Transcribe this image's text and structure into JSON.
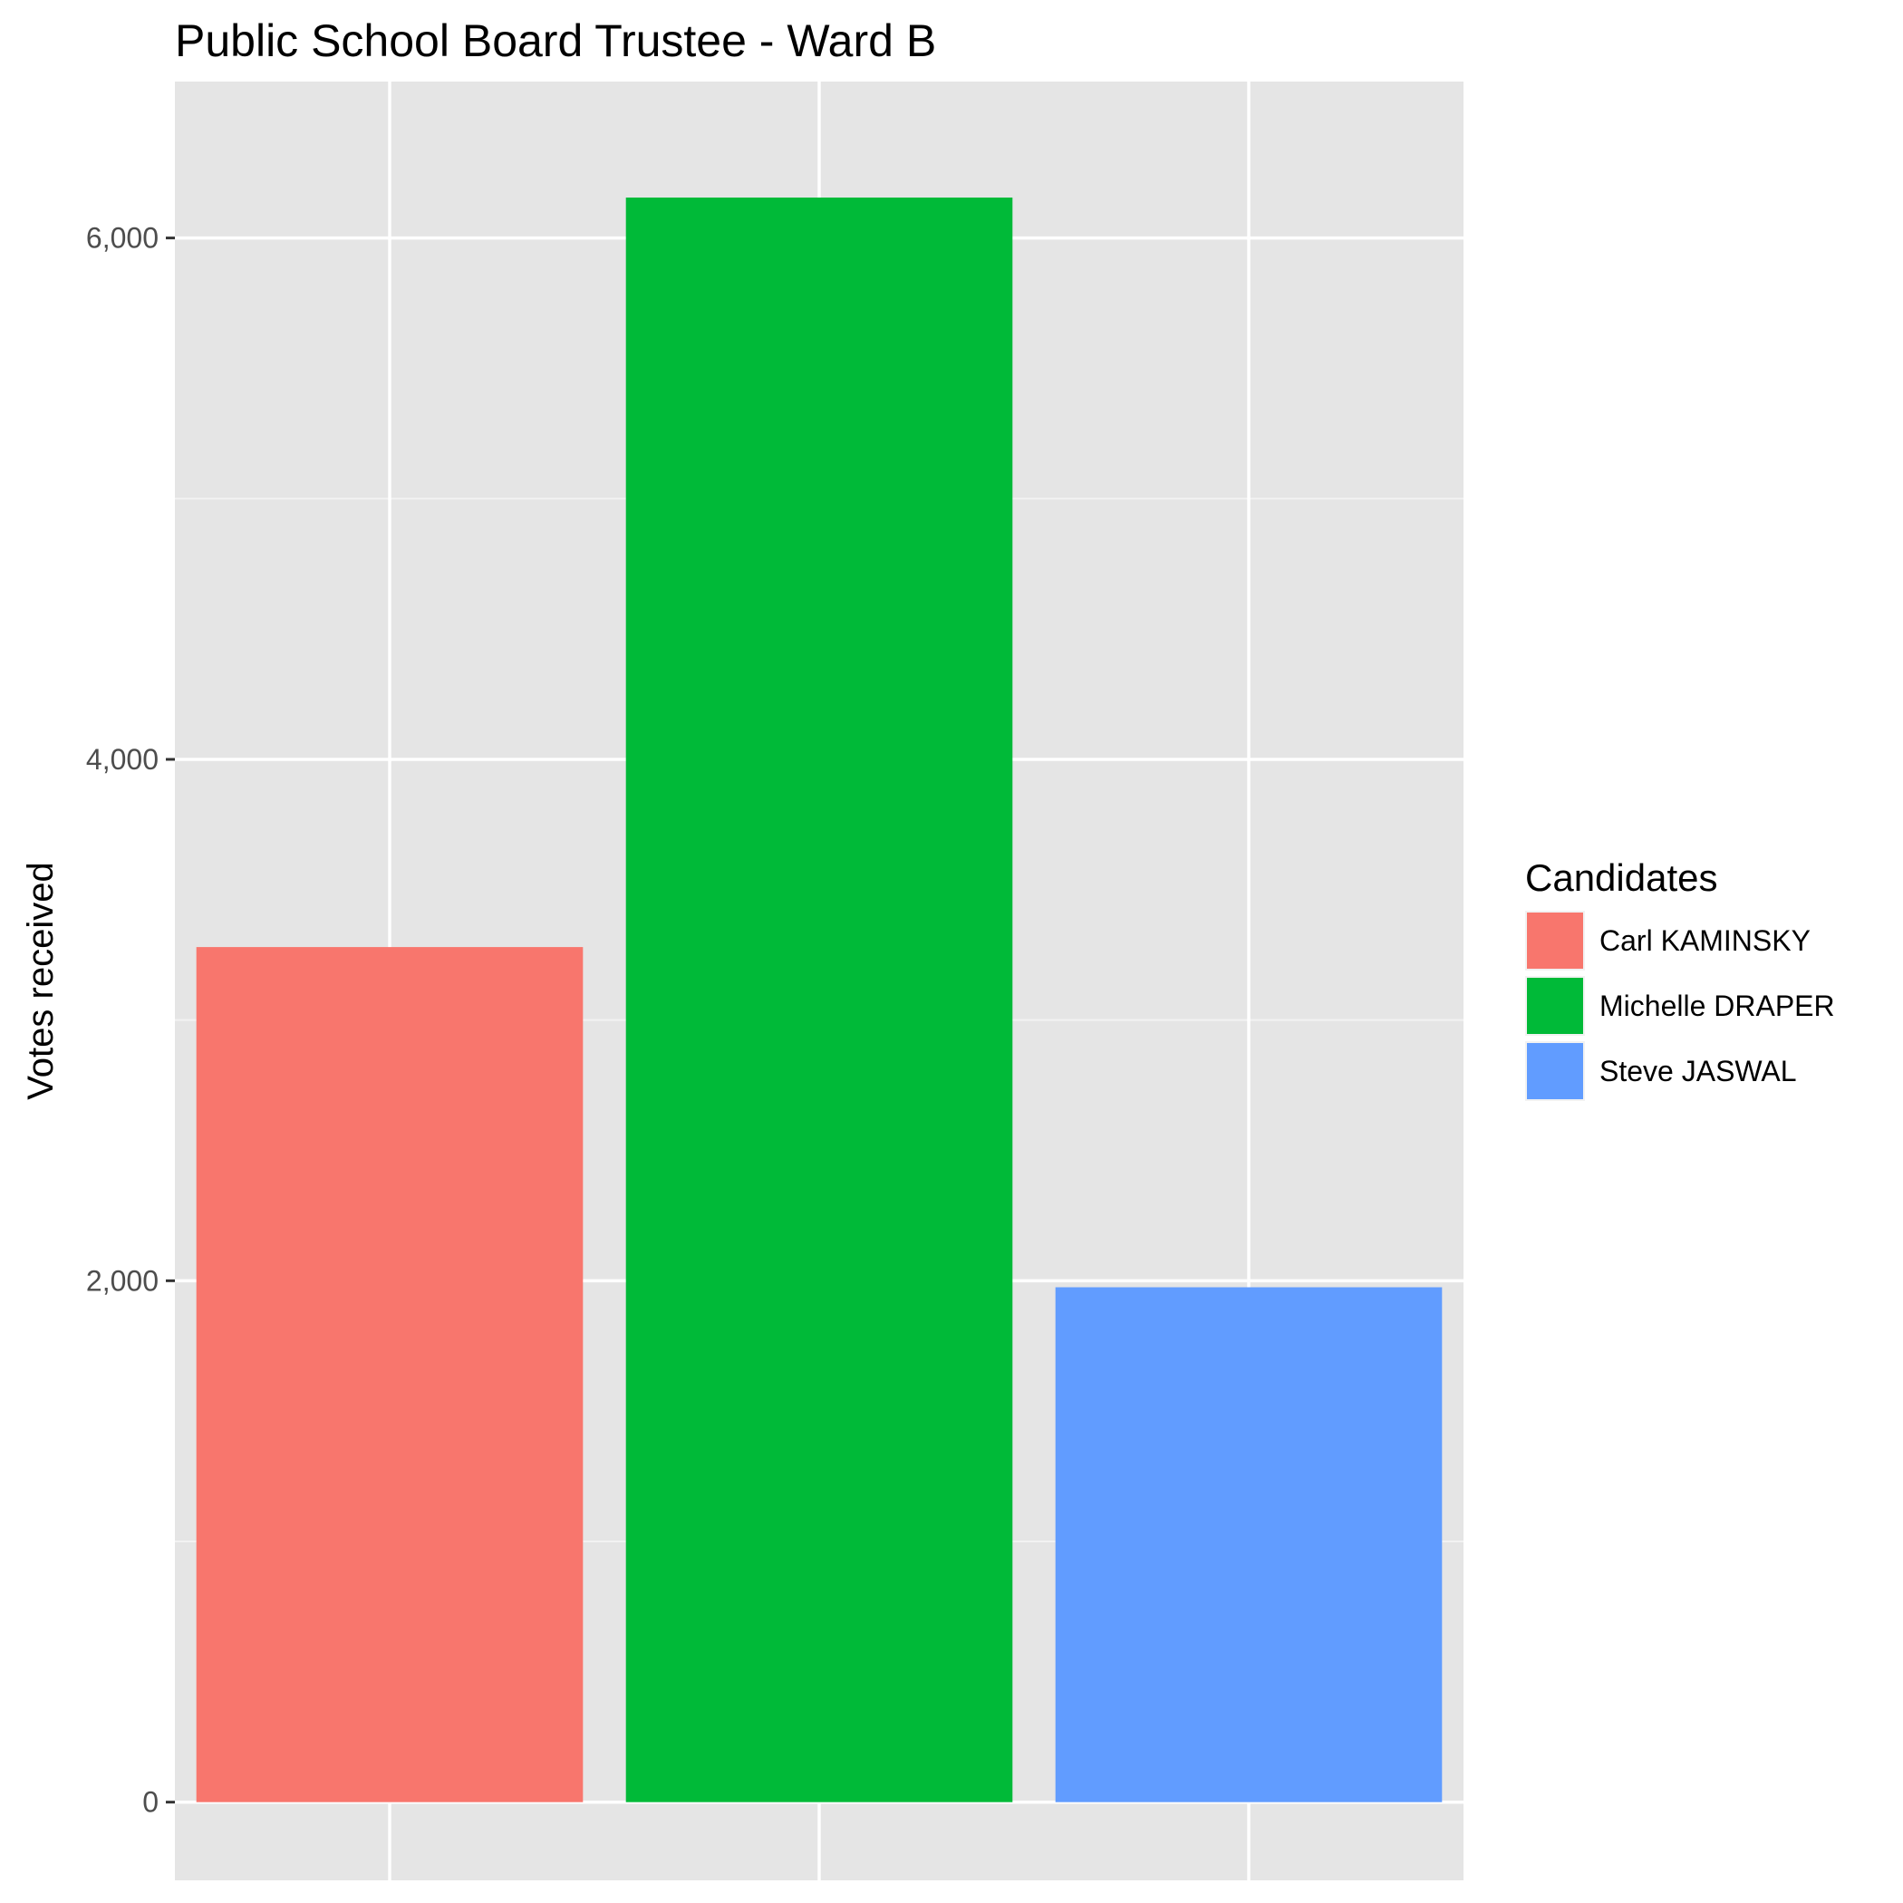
{
  "chart_data": {
    "type": "bar",
    "title": "Public School Board Trustee  - Ward B",
    "xlabel": "",
    "ylabel": "Votes received",
    "ylim": [
      -300,
      6600
    ],
    "y_ticks": [
      0,
      2000,
      4000,
      6000
    ],
    "y_tick_labels": [
      "0",
      "2,000",
      "4,000",
      "6,000"
    ],
    "categories": [
      "Carl KAMINSKY",
      "Michelle DRAPER",
      "Steve JASWAL"
    ],
    "values": [
      3280,
      6155,
      1975
    ],
    "colors": [
      "#F8766D",
      "#00BA38",
      "#619CFF"
    ],
    "grid": true,
    "legend": {
      "title": "Candidates",
      "position": "right",
      "entries": [
        "Carl KAMINSKY",
        "Michelle DRAPER",
        "Steve JASWAL"
      ]
    }
  }
}
